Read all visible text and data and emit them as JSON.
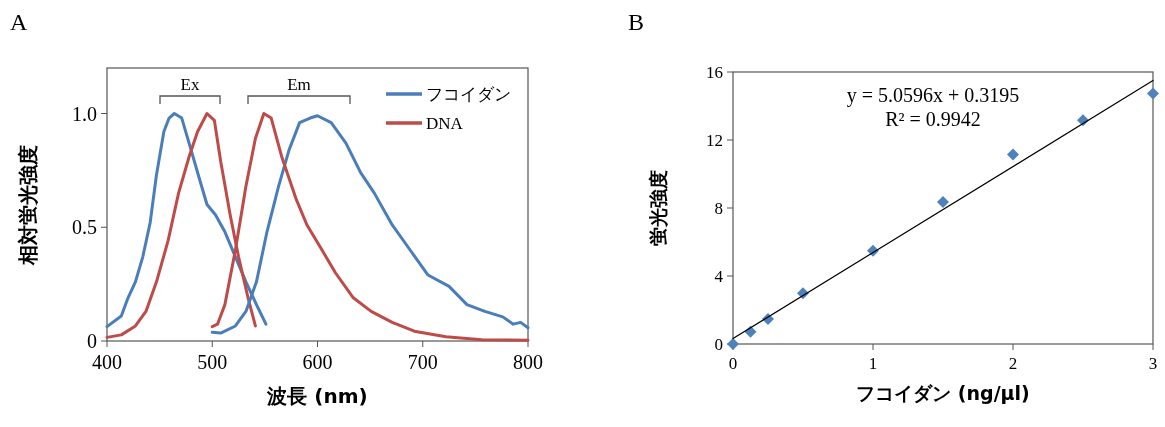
{
  "chart_data": [
    {
      "type": "line",
      "title": "A",
      "xlabel": "波長 (nm)",
      "ylabel": "相対蛍光強度",
      "xlim": [
        400,
        800
      ],
      "xticks": [
        400,
        500,
        600,
        700,
        800
      ],
      "ylim": [
        0,
        1.2
      ],
      "yticks": [
        0,
        {
          "value": 0.5,
          "label": "0.5"
        },
        {
          "value": 1,
          "label": "1.0"
        }
      ],
      "legend": "top right",
      "line_style": "solid",
      "annotations": [
        "Ex",
        "Em"
      ],
      "series": [
        {
          "name": "フコイダン",
          "color": "#4a7ebb",
          "x": [
            400,
            413.6,
            420,
            427,
            434,
            441,
            447,
            454,
            459,
            464,
            471,
            478,
            488,
            495,
            503,
            512,
            522,
            532,
            542,
            551
          ],
          "values": [
            0.063,
            0.11,
            0.19,
            0.26,
            0.37,
            0.52,
            0.73,
            0.92,
            0.98,
            1.0,
            0.98,
            0.87,
            0.71,
            0.6,
            0.555,
            0.48,
            0.37,
            0.26,
            0.16,
            0.074
          ]
        },
        {
          "name": "DNA",
          "color": "#be4b48",
          "x": [
            400,
            413.6,
            427,
            437,
            447,
            458,
            468,
            478,
            486,
            495,
            502,
            508,
            517,
            525,
            534,
            541
          ],
          "values": [
            0.016,
            0.027,
            0.066,
            0.13,
            0.26,
            0.44,
            0.65,
            0.81,
            0.92,
            1.0,
            0.97,
            0.79,
            0.555,
            0.37,
            0.19,
            0.066
          ]
        },
        {
          "color": "#4a7ebb",
          "x": [
            500,
            508,
            522,
            532,
            542,
            552,
            563,
            573,
            583,
            593,
            600,
            613,
            627,
            641,
            654,
            671,
            688,
            705,
            725,
            742,
            759,
            776,
            786,
            793,
            800
          ],
          "values": [
            0.038,
            0.035,
            0.066,
            0.13,
            0.26,
            0.48,
            0.68,
            0.84,
            0.96,
            0.98,
            0.99,
            0.96,
            0.87,
            0.74,
            0.65,
            0.51,
            0.4,
            0.29,
            0.24,
            0.16,
            0.13,
            0.106,
            0.074,
            0.082,
            0.058
          ]
        },
        {
          "color": "#be4b48",
          "x": [
            500,
            505,
            512,
            522,
            532,
            541,
            549,
            556,
            566,
            580,
            590,
            603,
            617,
            634,
            651,
            671,
            692,
            722,
            756,
            800
          ],
          "values": [
            0.063,
            0.074,
            0.16,
            0.4,
            0.68,
            0.89,
            1.0,
            0.98,
            0.81,
            0.62,
            0.51,
            0.41,
            0.3,
            0.19,
            0.13,
            0.082,
            0.043,
            0.019,
            0.006,
            0.003
          ]
        }
      ]
    },
    {
      "type": "scatter",
      "title": "B",
      "xlabel": "フコイダン (ng/μl)",
      "ylabel": "蛍光強度",
      "xlim": [
        0,
        3
      ],
      "xticks": [
        0,
        1,
        2,
        3
      ],
      "ylim": [
        0,
        16
      ],
      "yticks": [
        0,
        4,
        8,
        12,
        16
      ],
      "annotations": [
        "y = 5.0596x + 0.3195",
        "R² = 0.9942"
      ],
      "series": [
        {
          "color": "#4f81bd",
          "marker": "diamond",
          "x": [
            0,
            0.125,
            0.25,
            0.5,
            1,
            1.5,
            2,
            2.5,
            3
          ],
          "values": [
            0,
            0.72,
            1.47,
            2.98,
            5.48,
            8.36,
            11.14,
            13.16,
            14.73
          ]
        },
        {
          "type": "line",
          "marker": "none",
          "color": "#000000",
          "x": [
            0,
            3
          ],
          "values": [
            0.32,
            15.5
          ]
        }
      ]
    }
  ]
}
